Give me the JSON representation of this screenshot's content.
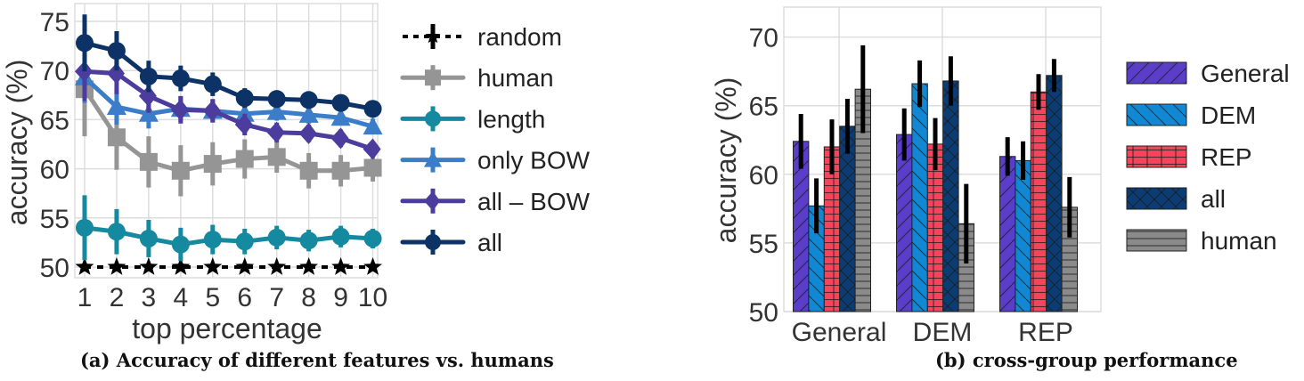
{
  "chart_data": [
    {
      "type": "line",
      "caption": "(a) Accuracy of different features vs. humans",
      "xlabel": "top percentage",
      "ylabel": "accuracy (%)",
      "x": [
        1,
        2,
        3,
        4,
        5,
        6,
        7,
        8,
        9,
        10
      ],
      "xticks": [
        "1",
        "2",
        "3",
        "4",
        "5",
        "6",
        "7",
        "8",
        "9",
        "10"
      ],
      "yticks": [
        "50",
        "55",
        "60",
        "65",
        "70",
        "75"
      ],
      "ylim": [
        49.5,
        75.8
      ],
      "grid": true,
      "legend_position": "right-outside",
      "series": [
        {
          "name": "random",
          "color": "#000000",
          "marker": "star",
          "linestyle": "dotted",
          "values": [
            50,
            50,
            50,
            50,
            50,
            50,
            50,
            50,
            50,
            50
          ],
          "err": [
            0,
            0,
            0,
            0,
            0,
            0,
            0,
            0,
            0,
            0
          ]
        },
        {
          "name": "human",
          "color": "#959595",
          "marker": "square",
          "values": [
            68.1,
            63.2,
            60.7,
            59.8,
            60.5,
            61.0,
            61.2,
            59.8,
            59.8,
            60.1
          ],
          "err": [
            4.8,
            3.3,
            2.6,
            2.6,
            2.2,
            2.0,
            1.6,
            1.8,
            1.6,
            1.4
          ]
        },
        {
          "name": "length",
          "color": "#14899f",
          "marker": "circle",
          "values": [
            54.0,
            53.6,
            52.9,
            52.3,
            52.8,
            52.6,
            53.0,
            52.7,
            53.1,
            52.9
          ],
          "err": [
            3.3,
            2.3,
            1.9,
            1.7,
            1.5,
            1.3,
            1.2,
            1.1,
            1.1,
            1.0
          ]
        },
        {
          "name": "only BOW",
          "color": "#3b7dc8",
          "marker": "triangle",
          "values": [
            69.3,
            66.3,
            65.6,
            66.1,
            65.9,
            65.6,
            65.8,
            65.5,
            65.2,
            64.3
          ],
          "err": [
            2.6,
            1.8,
            1.5,
            1.3,
            1.1,
            1.0,
            0.9,
            0.9,
            0.8,
            0.8
          ]
        },
        {
          "name": "all – BOW",
          "color": "#4b3c9e",
          "marker": "diamond",
          "values": [
            69.9,
            69.7,
            67.4,
            66.0,
            65.9,
            64.5,
            63.7,
            63.6,
            63.1,
            62.0
          ],
          "err": [
            3.0,
            2.1,
            1.7,
            1.4,
            1.2,
            1.1,
            1.0,
            0.9,
            0.9,
            0.8
          ]
        },
        {
          "name": "all",
          "color": "#0d3366",
          "marker": "circle",
          "values": [
            72.8,
            72.0,
            69.4,
            69.2,
            68.6,
            67.2,
            67.1,
            67.0,
            66.7,
            66.1
          ],
          "err": [
            2.9,
            2.0,
            1.6,
            1.3,
            1.2,
            1.0,
            0.9,
            0.9,
            0.8,
            0.8
          ]
        }
      ]
    },
    {
      "type": "bar",
      "caption": "(b) cross-group performance",
      "xlabel": "",
      "ylabel": "accuracy (%)",
      "categories": [
        "General",
        "DEM",
        "REP"
      ],
      "yticks": [
        "50",
        "55",
        "60",
        "65",
        "70"
      ],
      "ylim": [
        50,
        72.2
      ],
      "grid": true,
      "legend_position": "right-outside",
      "series": [
        {
          "name": "General",
          "color": "#5a3dc8",
          "hatch": "/",
          "values": [
            62.4,
            62.9,
            61.3
          ],
          "err": [
            2.0,
            1.9,
            1.4
          ]
        },
        {
          "name": "DEM",
          "color": "#1188d4",
          "hatch": "\\",
          "values": [
            57.7,
            66.6,
            61.0
          ],
          "err": [
            2.0,
            1.7,
            1.4
          ]
        },
        {
          "name": "REP",
          "color": "#f5455c",
          "hatch": "+",
          "values": [
            62.0,
            62.2,
            66.0
          ],
          "err": [
            2.0,
            1.9,
            1.3
          ]
        },
        {
          "name": "all",
          "color": "#0b3d74",
          "hatch": "x",
          "values": [
            63.5,
            66.8,
            67.2
          ],
          "err": [
            2.0,
            1.8,
            1.2
          ]
        },
        {
          "name": "human",
          "color": "#8a8a8a",
          "hatch": "-",
          "values": [
            66.2,
            56.4,
            57.6
          ],
          "err": [
            3.2,
            2.9,
            2.2
          ]
        }
      ]
    }
  ]
}
